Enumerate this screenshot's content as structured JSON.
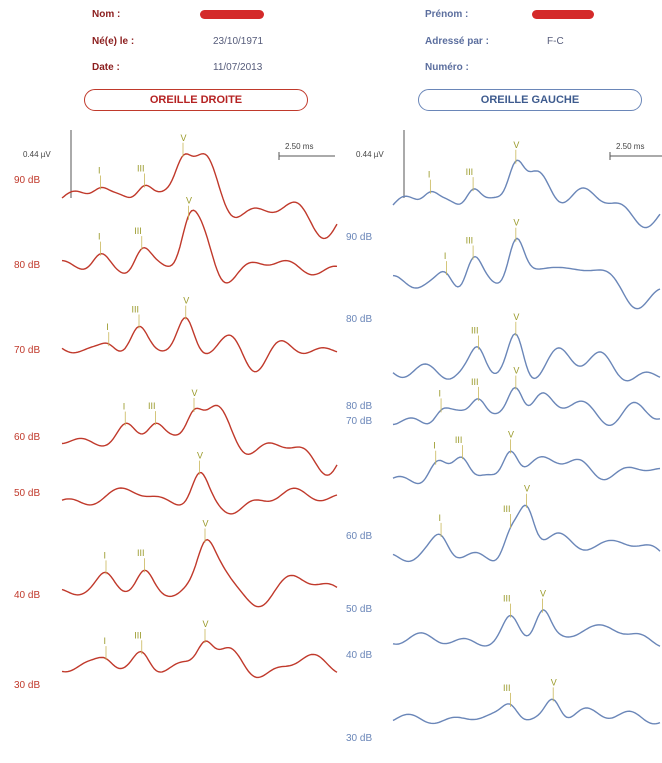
{
  "header": {
    "nom_label": "Nom :",
    "ne_le_label": "Né(e) le :",
    "ne_le_value": "23/10/1971",
    "date_label": "Date :",
    "date_value": "11/07/2013",
    "prenom_label": "Prénom :",
    "adresse_label": "Adressé par :",
    "adresse_value": "F-C",
    "numero_label": "Numéro :"
  },
  "chart_data": [
    {
      "type": "line",
      "title": "OREILLE DROITE",
      "color": "#c0392b",
      "amplitude_scale": "0.44 µV",
      "time_scale": "2.50 ms",
      "series": [
        {
          "name": "90 dB",
          "peaks": [
            "I",
            "III",
            "V"
          ]
        },
        {
          "name": "80 dB",
          "peaks": [
            "I",
            "III",
            "V"
          ]
        },
        {
          "name": "70 dB",
          "peaks": [
            "I",
            "III",
            "V"
          ]
        },
        {
          "name": "60 dB",
          "peaks": [
            "I",
            "III",
            "V"
          ]
        },
        {
          "name": "50 dB",
          "peaks": [
            "V"
          ]
        },
        {
          "name": "40 dB",
          "peaks": [
            "I",
            "III",
            "V"
          ]
        },
        {
          "name": "30 dB",
          "peaks": [
            "I",
            "III",
            "V"
          ]
        }
      ]
    },
    {
      "type": "line",
      "title": "OREILLE GAUCHE",
      "color": "#6a86b8",
      "amplitude_scale": "0.44 µV",
      "time_scale": "2.50 ms",
      "series": [
        {
          "name": "90 dB",
          "peaks": [
            "I",
            "III",
            "V"
          ]
        },
        {
          "name": "80 dB",
          "peaks": [
            "I",
            "III",
            "V"
          ]
        },
        {
          "name": "80 dB",
          "peaks": [
            "III",
            "V"
          ]
        },
        {
          "name": "70 dB",
          "peaks": [
            "I",
            "III",
            "V"
          ]
        },
        {
          "name": "60 dB",
          "peaks": [
            "I",
            "III",
            "V"
          ]
        },
        {
          "name": "50 dB",
          "peaks": [
            "I",
            "III",
            "V"
          ]
        },
        {
          "name": "40 dB",
          "peaks": [
            "III",
            "V"
          ]
        },
        {
          "name": "30 dB",
          "peaks": [
            "III",
            "V"
          ]
        }
      ]
    }
  ]
}
